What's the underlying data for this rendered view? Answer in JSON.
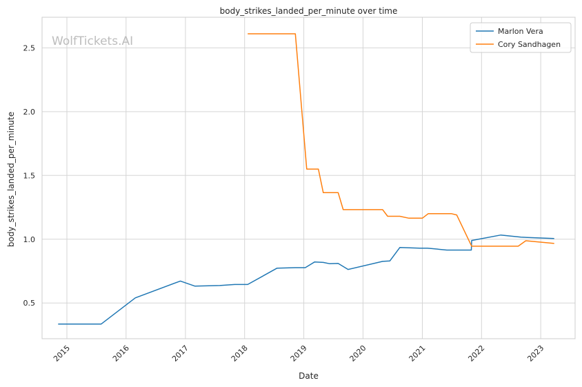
{
  "chart_data": {
    "type": "line",
    "title": "body_strikes_landed_per_minute over time",
    "xlabel": "Date",
    "ylabel": "body_strikes_landed_per_minute",
    "watermark": "WolfTickets.AI",
    "xlim": [
      "2014-08-01",
      "2023-08-01"
    ],
    "ylim": [
      0.22,
      2.74
    ],
    "x_ticks": [
      "2015",
      "2016",
      "2017",
      "2018",
      "2019",
      "2020",
      "2021",
      "2022",
      "2023"
    ],
    "y_ticks": [
      "0.5",
      "1.0",
      "1.5",
      "2.0",
      "2.5"
    ],
    "grid": true,
    "legend_position": "top-right",
    "colors": {
      "Marlon Vera": "#1f77b4",
      "Cory Sandhagen": "#ff7f0e",
      "grid": "#d5d5d5",
      "frame": "#cccccc"
    },
    "series": [
      {
        "name": "Marlon Vera",
        "color": "#1f77b4",
        "points": [
          [
            "2014-11-08",
            0.335
          ],
          [
            "2015-08-01",
            0.335
          ],
          [
            "2016-02-27",
            0.54
          ],
          [
            "2016-12-01",
            0.672
          ],
          [
            "2017-03-01",
            0.632
          ],
          [
            "2017-08-01",
            0.637
          ],
          [
            "2017-11-01",
            0.645
          ],
          [
            "2018-01-20",
            0.645
          ],
          [
            "2018-07-20",
            0.773
          ],
          [
            "2018-11-10",
            0.777
          ],
          [
            "2019-01-10",
            0.777
          ],
          [
            "2019-03-09",
            0.822
          ],
          [
            "2019-05-01",
            0.818
          ],
          [
            "2019-06-10",
            0.808
          ],
          [
            "2019-08-01",
            0.81
          ],
          [
            "2019-10-01",
            0.763
          ],
          [
            "2020-05-01",
            0.826
          ],
          [
            "2020-06-15",
            0.83
          ],
          [
            "2020-08-15",
            0.935
          ],
          [
            "2020-12-15",
            0.93
          ],
          [
            "2021-02-01",
            0.93
          ],
          [
            "2021-06-01",
            0.915
          ],
          [
            "2021-10-30",
            0.915
          ],
          [
            "2021-11-01",
            0.99
          ],
          [
            "2022-04-30",
            1.033
          ],
          [
            "2022-09-01",
            1.016
          ],
          [
            "2023-03-25",
            1.005
          ]
        ]
      },
      {
        "name": "Cory Sandhagen",
        "color": "#ff7f0e",
        "points": [
          [
            "2018-01-20",
            2.61
          ],
          [
            "2018-11-10",
            2.61
          ],
          [
            "2019-01-19",
            1.55
          ],
          [
            "2019-04-01",
            1.55
          ],
          [
            "2019-05-01",
            1.365
          ],
          [
            "2019-08-01",
            1.365
          ],
          [
            "2019-09-01",
            1.232
          ],
          [
            "2020-05-01",
            1.232
          ],
          [
            "2020-06-01",
            1.18
          ],
          [
            "2020-08-15",
            1.18
          ],
          [
            "2020-10-10",
            1.165
          ],
          [
            "2021-01-01",
            1.165
          ],
          [
            "2021-02-06",
            1.2
          ],
          [
            "2021-07-01",
            1.2
          ],
          [
            "2021-08-01",
            1.19
          ],
          [
            "2021-11-01",
            0.945
          ],
          [
            "2022-08-15",
            0.945
          ],
          [
            "2022-10-01",
            0.988
          ],
          [
            "2023-03-25",
            0.967
          ]
        ]
      }
    ]
  }
}
